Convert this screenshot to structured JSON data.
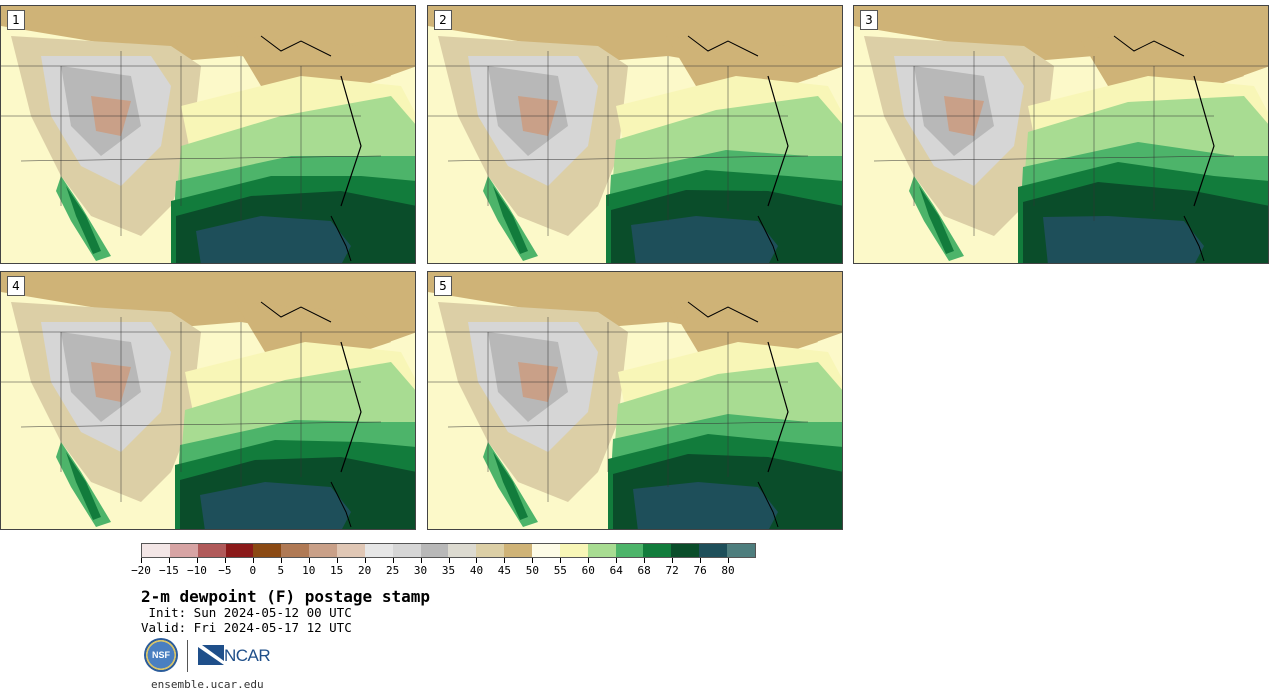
{
  "panels": [
    {
      "label": "1"
    },
    {
      "label": "2"
    },
    {
      "label": "3"
    },
    {
      "label": "4"
    },
    {
      "label": "5"
    }
  ],
  "colorbar": {
    "colors": [
      "#f3e6e6",
      "#d7a4a4",
      "#b05a5a",
      "#8b1a1a",
      "#8b4a14",
      "#b07a55",
      "#c9a088",
      "#e0c7b5",
      "#e6e6e6",
      "#d6d6d6",
      "#b8b8b8",
      "#dcdad0",
      "#dccfa6",
      "#cfb377",
      "#fdfbe6",
      "#f8f6b7",
      "#a8dc92",
      "#4db46a",
      "#127c3c",
      "#0a4d2a",
      "#1e4f5a",
      "#4e7e7e"
    ],
    "tick_labels": [
      "−20",
      "−15",
      "−10",
      "−5",
      "0",
      "5",
      "10",
      "15",
      "20",
      "25",
      "30",
      "35",
      "40",
      "45",
      "50",
      "55",
      "60",
      "64",
      "68",
      "72",
      "76",
      "80"
    ]
  },
  "title": "2-m dewpoint (F) postage stamp",
  "init_line": " Init: Sun 2024-05-12 00 UTC",
  "valid_line": "Valid: Fri 2024-05-17 12 UTC",
  "logos": {
    "nsf": "NSF",
    "ncar": "NCAR"
  },
  "url": "ensemble.ucar.edu"
}
